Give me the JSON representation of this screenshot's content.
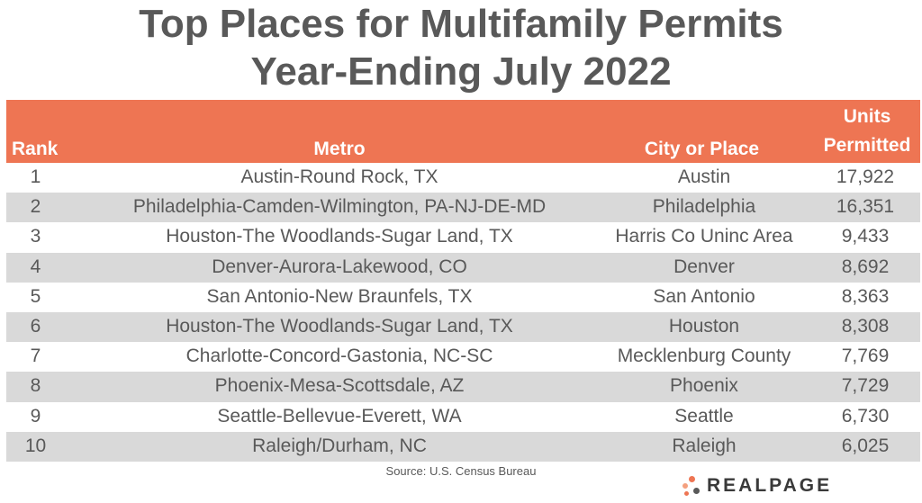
{
  "title_line1": "Top Places for Multifamily Permits",
  "title_line2": "Year-Ending July 2022",
  "chart_data": {
    "type": "table",
    "columns": [
      "Rank",
      "Metro",
      "City or Place",
      "Units Permitted"
    ],
    "header": {
      "rank": "Rank",
      "metro": "Metro",
      "city": "City or Place",
      "units_line1": "Units",
      "units_line2": "Permitted"
    },
    "rows": [
      {
        "rank": "1",
        "metro": "Austin-Round Rock, TX",
        "city": "Austin",
        "units": "17,922"
      },
      {
        "rank": "2",
        "metro": "Philadelphia-Camden-Wilmington, PA-NJ-DE-MD",
        "city": "Philadelphia",
        "units": "16,351"
      },
      {
        "rank": "3",
        "metro": "Houston-The Woodlands-Sugar Land, TX",
        "city": "Harris Co Uninc Area",
        "units": "9,433"
      },
      {
        "rank": "4",
        "metro": "Denver-Aurora-Lakewood, CO",
        "city": "Denver",
        "units": "8,692"
      },
      {
        "rank": "5",
        "metro": "San Antonio-New Braunfels, TX",
        "city": "San Antonio",
        "units": "8,363"
      },
      {
        "rank": "6",
        "metro": "Houston-The Woodlands-Sugar Land, TX",
        "city": "Houston",
        "units": "8,308"
      },
      {
        "rank": "7",
        "metro": "Charlotte-Concord-Gastonia, NC-SC",
        "city": "Mecklenburg County",
        "units": "7,769"
      },
      {
        "rank": "8",
        "metro": "Phoenix-Mesa-Scottsdale, AZ",
        "city": "Phoenix",
        "units": "7,729"
      },
      {
        "rank": "9",
        "metro": "Seattle-Bellevue-Everett, WA",
        "city": "Seattle",
        "units": "6,730"
      },
      {
        "rank": "10",
        "metro": "Raleigh/Durham, NC",
        "city": "Raleigh",
        "units": "6,025"
      }
    ]
  },
  "source": "Source: U.S. Census Bureau",
  "logo": {
    "text": "REALPAGE",
    "icon": "realpage-dots-icon",
    "colors": [
      "#ee7553",
      "#f4a07f",
      "#595959"
    ]
  },
  "colors": {
    "header_bg": "#ee7553",
    "alt_row_bg": "#d9d9d9",
    "text": "#595959"
  }
}
